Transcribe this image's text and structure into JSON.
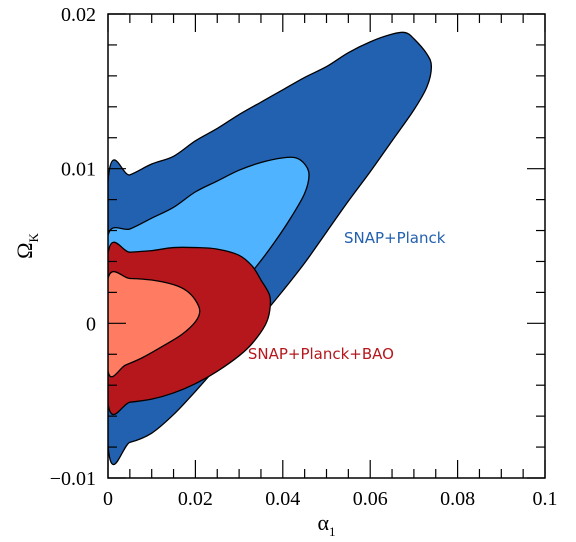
{
  "chart_data": {
    "type": "contour",
    "xlabel": "α",
    "xlabel_sub": "1",
    "ylabel": "Ω",
    "ylabel_sub": "K",
    "xlim": [
      0,
      0.1
    ],
    "ylim": [
      -0.01,
      0.02
    ],
    "xticks": [
      0,
      0.02,
      0.04,
      0.06,
      0.08,
      0.1
    ],
    "xtick_labels": [
      "0",
      "0.02",
      "0.04",
      "0.06",
      "0.08",
      "0.1"
    ],
    "yticks": [
      -0.01,
      0,
      0.01,
      0.02
    ],
    "ytick_labels": [
      "−0.01",
      "0",
      "0.01",
      "0.02"
    ],
    "grid": false,
    "series": [
      {
        "name": "SNAP+Planck",
        "color_outer": "#2260b0",
        "color_inner": "#4fb3ff",
        "contours": [
          {
            "level": "outer",
            "points": [
              [
                0,
                0.0092
              ],
              [
                0.005,
                0.0096
              ],
              [
                0.01,
                0.0103
              ],
              [
                0.015,
                0.0108
              ],
              [
                0.02,
                0.0118
              ],
              [
                0.025,
                0.0126
              ],
              [
                0.03,
                0.0135
              ],
              [
                0.035,
                0.0143
              ],
              [
                0.04,
                0.0151
              ],
              [
                0.045,
                0.0159
              ],
              [
                0.05,
                0.0166
              ],
              [
                0.055,
                0.0175
              ],
              [
                0.06,
                0.0182
              ],
              [
                0.065,
                0.0187
              ],
              [
                0.068,
                0.0188
              ],
              [
                0.07,
                0.0184
              ],
              [
                0.073,
                0.0174
              ],
              [
                0.074,
                0.0166
              ],
              [
                0.073,
                0.0153
              ],
              [
                0.07,
                0.0138
              ],
              [
                0.065,
                0.0118
              ],
              [
                0.06,
                0.0098
              ],
              [
                0.055,
                0.0079
              ],
              [
                0.05,
                0.0059
              ],
              [
                0.045,
                0.0039
              ],
              [
                0.04,
                0.0021
              ],
              [
                0.035,
                0.0004
              ],
              [
                0.03,
                -0.0012
              ],
              [
                0.025,
                -0.0028
              ],
              [
                0.02,
                -0.0044
              ],
              [
                0.015,
                -0.0059
              ],
              [
                0.01,
                -0.0071
              ],
              [
                0.005,
                -0.0077
              ],
              [
                0,
                -0.0079
              ]
            ]
          },
          {
            "level": "inner",
            "points": [
              [
                0,
                0.0057
              ],
              [
                0.005,
                0.0061
              ],
              [
                0.01,
                0.0068
              ],
              [
                0.015,
                0.0075
              ],
              [
                0.02,
                0.0085
              ],
              [
                0.025,
                0.0092
              ],
              [
                0.03,
                0.0099
              ],
              [
                0.035,
                0.0104
              ],
              [
                0.04,
                0.0107
              ],
              [
                0.043,
                0.0107
              ],
              [
                0.045,
                0.0103
              ],
              [
                0.046,
                0.0096
              ],
              [
                0.045,
                0.0084
              ],
              [
                0.042,
                0.0069
              ],
              [
                0.038,
                0.0052
              ],
              [
                0.034,
                0.0037
              ],
              [
                0.03,
                0.0024
              ],
              [
                0.025,
                0.0012
              ],
              [
                0.02,
                0.0004
              ],
              [
                0.015,
                0.0002
              ],
              [
                0.01,
                0.0003
              ],
              [
                0.005,
                0.0004
              ],
              [
                0,
                0.0005
              ]
            ]
          }
        ]
      },
      {
        "name": "SNAP+Planck+BAO",
        "color_outer": "#b5171c",
        "color_inner": "#ff7b62",
        "contours": [
          {
            "level": "outer",
            "points": [
              [
                0,
                0.0045
              ],
              [
                0.005,
                0.0046
              ],
              [
                0.01,
                0.0047
              ],
              [
                0.015,
                0.0049
              ],
              [
                0.02,
                0.0049
              ],
              [
                0.025,
                0.0048
              ],
              [
                0.03,
                0.0044
              ],
              [
                0.033,
                0.0037
              ],
              [
                0.035,
                0.0028
              ],
              [
                0.037,
                0.0018
              ],
              [
                0.037,
                0.0008
              ],
              [
                0.036,
                -0.0001
              ],
              [
                0.033,
                -0.0013
              ],
              [
                0.03,
                -0.0021
              ],
              [
                0.025,
                -0.0031
              ],
              [
                0.02,
                -0.0039
              ],
              [
                0.015,
                -0.0045
              ],
              [
                0.01,
                -0.0049
              ],
              [
                0.005,
                -0.0051
              ],
              [
                0,
                -0.0052
              ]
            ]
          },
          {
            "level": "inner",
            "points": [
              [
                0,
                0.0029
              ],
              [
                0.005,
                0.0029
              ],
              [
                0.01,
                0.0028
              ],
              [
                0.015,
                0.0025
              ],
              [
                0.018,
                0.0021
              ],
              [
                0.02,
                0.0015
              ],
              [
                0.021,
                0.0008
              ],
              [
                0.02,
                0.0001
              ],
              [
                0.017,
                -0.0007
              ],
              [
                0.013,
                -0.0014
              ],
              [
                0.008,
                -0.0022
              ],
              [
                0.004,
                -0.0027
              ],
              [
                0,
                -0.0031
              ]
            ]
          }
        ]
      }
    ],
    "annotations": [
      {
        "text": "SNAP+Planck",
        "x": 0.054,
        "y": 0.0052,
        "color": "#2260b0"
      },
      {
        "text": "SNAP+Planck+BAO",
        "x": 0.032,
        "y": -0.0023,
        "color": "#b5171c"
      }
    ]
  }
}
